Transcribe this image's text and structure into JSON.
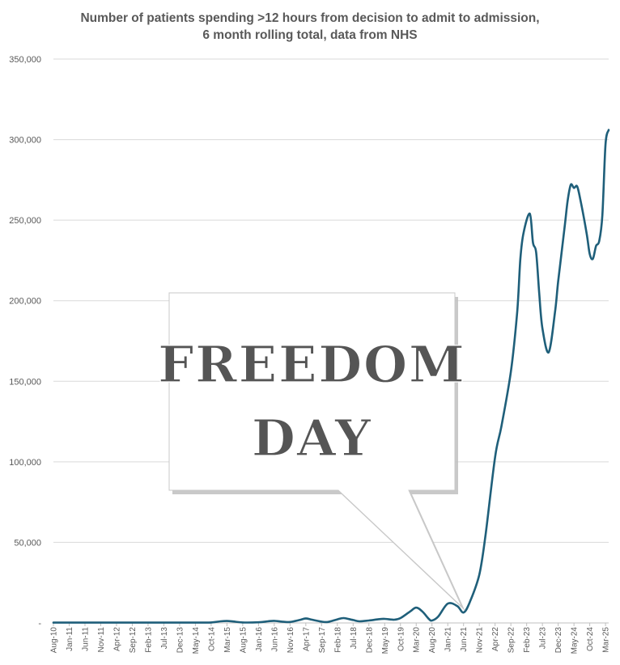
{
  "chart_data": {
    "type": "line",
    "title_line1": "Number of patients spending >12 hours from decision to admit to admission,",
    "title_line2": "6 month rolling total, data from NHS",
    "xlabel": "",
    "ylabel": "",
    "ylim": [
      0,
      350000
    ],
    "yticks": [
      0,
      50000,
      100000,
      150000,
      200000,
      250000,
      300000,
      350000
    ],
    "ytick_labels": [
      "-",
      "50,000",
      "100,000",
      "150,000",
      "200,000",
      "250,000",
      "300,000",
      "350,000"
    ],
    "grid": true,
    "x_tick_labels": [
      "Aug-10",
      "Jan-11",
      "Jun-11",
      "Nov-11",
      "Apr-12",
      "Sep-12",
      "Feb-13",
      "Jul-13",
      "Dec-13",
      "May-14",
      "Oct-14",
      "Mar-15",
      "Aug-15",
      "Jan-16",
      "Jun-16",
      "Nov-16",
      "Apr-17",
      "Sep-17",
      "Feb-18",
      "Jul-18",
      "Dec-18",
      "May-19",
      "Oct-19",
      "Mar-20",
      "Aug-20",
      "Jan-21",
      "Jun-21",
      "Nov-21",
      "Apr-22",
      "Sep-22",
      "Feb-23",
      "Jul-23",
      "Dec-23",
      "May-24",
      "Oct-24",
      "Mar-25"
    ],
    "line_color": "#1f5f7a",
    "series": [
      {
        "points": [
          [
            "Aug-10",
            200
          ],
          [
            "Jan-11",
            200
          ],
          [
            "Jun-11",
            200
          ],
          [
            "Nov-11",
            200
          ],
          [
            "Apr-12",
            200
          ],
          [
            "Sep-12",
            200
          ],
          [
            "Feb-13",
            200
          ],
          [
            "Jul-13",
            200
          ],
          [
            "Dec-13",
            200
          ],
          [
            "May-14",
            200
          ],
          [
            "Oct-14",
            300
          ],
          [
            "Jan-15",
            1000
          ],
          [
            "Mar-15",
            1200
          ],
          [
            "May-15",
            900
          ],
          [
            "Aug-15",
            300
          ],
          [
            "Jan-16",
            400
          ],
          [
            "Apr-16",
            1000
          ],
          [
            "Jun-16",
            1300
          ],
          [
            "Sep-16",
            700
          ],
          [
            "Nov-16",
            600
          ],
          [
            "Feb-17",
            1800
          ],
          [
            "Apr-17",
            2800
          ],
          [
            "Jun-17",
            2000
          ],
          [
            "Sep-17",
            800
          ],
          [
            "Nov-17",
            600
          ],
          [
            "Feb-18",
            2200
          ],
          [
            "Apr-18",
            3000
          ],
          [
            "Jul-18",
            1800
          ],
          [
            "Sep-18",
            1000
          ],
          [
            "Dec-18",
            1500
          ],
          [
            "Mar-19",
            2300
          ],
          [
            "May-19",
            2500
          ],
          [
            "Aug-19",
            2000
          ],
          [
            "Oct-19",
            3000
          ],
          [
            "Jan-20",
            7000
          ],
          [
            "Mar-20",
            9500
          ],
          [
            "May-20",
            7000
          ],
          [
            "Jul-20",
            2500
          ],
          [
            "Aug-20",
            1500
          ],
          [
            "Oct-20",
            4000
          ],
          [
            "Jan-21",
            12000
          ],
          [
            "Apr-21",
            10500
          ],
          [
            "Jun-21",
            6500
          ],
          [
            "Aug-21",
            13000
          ],
          [
            "Nov-21",
            30000
          ],
          [
            "Jan-22",
            55000
          ],
          [
            "Apr-22",
            103000
          ],
          [
            "Jun-22",
            122000
          ],
          [
            "Sep-22",
            156000
          ],
          [
            "Nov-22",
            193000
          ],
          [
            "Dec-22",
            226000
          ],
          [
            "Jan-23",
            242000
          ],
          [
            "Mar-23",
            254000
          ],
          [
            "Apr-23",
            236000
          ],
          [
            "May-23",
            230000
          ],
          [
            "Jun-23",
            204000
          ],
          [
            "Jul-23",
            183000
          ],
          [
            "Sep-23",
            168000
          ],
          [
            "Nov-23",
            193000
          ],
          [
            "Dec-23",
            212000
          ],
          [
            "Feb-24",
            245000
          ],
          [
            "Mar-24",
            262000
          ],
          [
            "Apr-24",
            272000
          ],
          [
            "May-24",
            270000
          ],
          [
            "Jun-24",
            271000
          ],
          [
            "Jul-24",
            263000
          ],
          [
            "Sep-24",
            242000
          ],
          [
            "Oct-24",
            229000
          ],
          [
            "Nov-24",
            226000
          ],
          [
            "Dec-24",
            234000
          ],
          [
            "Jan-25",
            237000
          ],
          [
            "Feb-25",
            253000
          ],
          [
            "Mar-25",
            297000
          ],
          [
            "Apr-25",
            306000
          ]
        ]
      }
    ]
  },
  "callout": {
    "line1": "FREEDOM",
    "line2": "DAY",
    "pointer_date": "Jul-21",
    "pointer_value": 7000
  }
}
